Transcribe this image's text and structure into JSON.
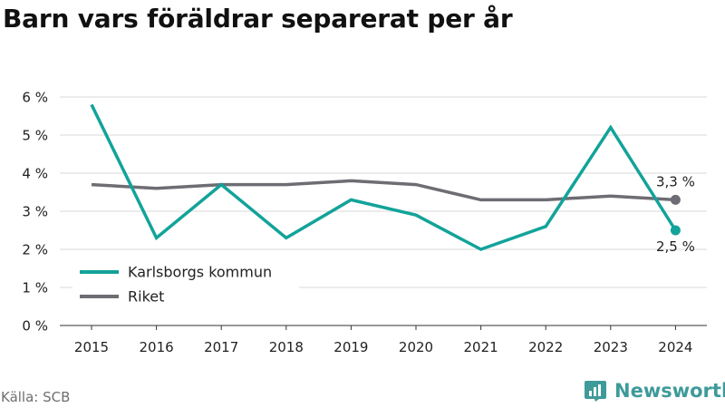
{
  "title": "Barn vars föräldrar separerat per år",
  "source": "Källa: SCB",
  "brand": {
    "name": "Newsworthy",
    "logo_icon": "bar-chart-logo-icon"
  },
  "colors": {
    "teal": "#12a39a",
    "gray": "#6e6d73",
    "grid": "#d9d9d9",
    "brand": "#3f9a9a"
  },
  "chart_data": {
    "type": "line",
    "title": "Barn vars föräldrar separerat per år",
    "x": [
      "2015",
      "2016",
      "2017",
      "2018",
      "2019",
      "2020",
      "2021",
      "2022",
      "2023",
      "2024"
    ],
    "series": [
      {
        "name": "Karlsborgs kommun",
        "color": "#12a39a",
        "values": [
          5.8,
          2.3,
          3.7,
          2.3,
          3.3,
          2.9,
          2.0,
          2.6,
          5.2,
          2.5
        ]
      },
      {
        "name": "Riket",
        "color": "#6e6d73",
        "values": [
          3.7,
          3.6,
          3.7,
          3.7,
          3.8,
          3.7,
          3.3,
          3.3,
          3.4,
          3.3
        ]
      }
    ],
    "ylim": [
      0,
      6
    ],
    "yticks": [
      "0 %",
      "1 %",
      "2 %",
      "3 %",
      "4 %",
      "5 %",
      "6 %"
    ],
    "end_labels": {
      "Karlsborgs kommun": "2,5 %",
      "Riket": "3,3 %"
    },
    "grid": "horizontal",
    "legend_position": "lower-left",
    "xlabel": "",
    "ylabel": ""
  }
}
